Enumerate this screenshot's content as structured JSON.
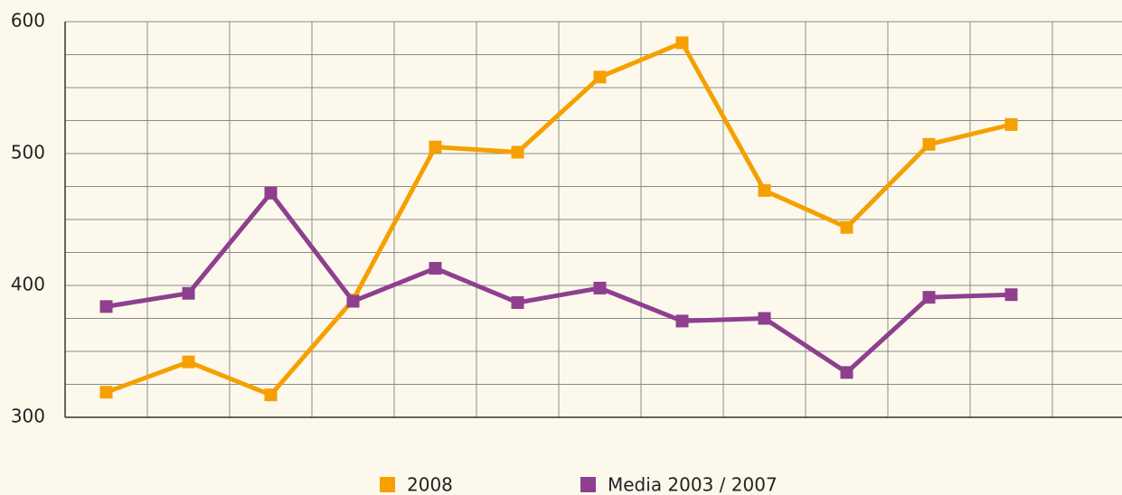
{
  "chart_data": {
    "type": "line",
    "categories": [
      null,
      null,
      null,
      null,
      null,
      null,
      null,
      null,
      null,
      null,
      null,
      null
    ],
    "series": [
      {
        "name": "2008",
        "color": "#f5a000",
        "values": [
          319,
          342,
          317,
          389,
          505,
          501,
          558,
          584,
          472,
          444,
          507,
          522
        ]
      },
      {
        "name": "Media 2003 / 2007",
        "color": "#8e3f8e",
        "values": [
          384,
          394,
          470,
          388,
          413,
          387,
          398,
          373,
          375,
          334,
          391,
          393
        ]
      }
    ],
    "ylim": [
      300,
      600
    ],
    "yticks": [
      300,
      400,
      500,
      600
    ],
    "grid": true,
    "legend": "bottom"
  }
}
